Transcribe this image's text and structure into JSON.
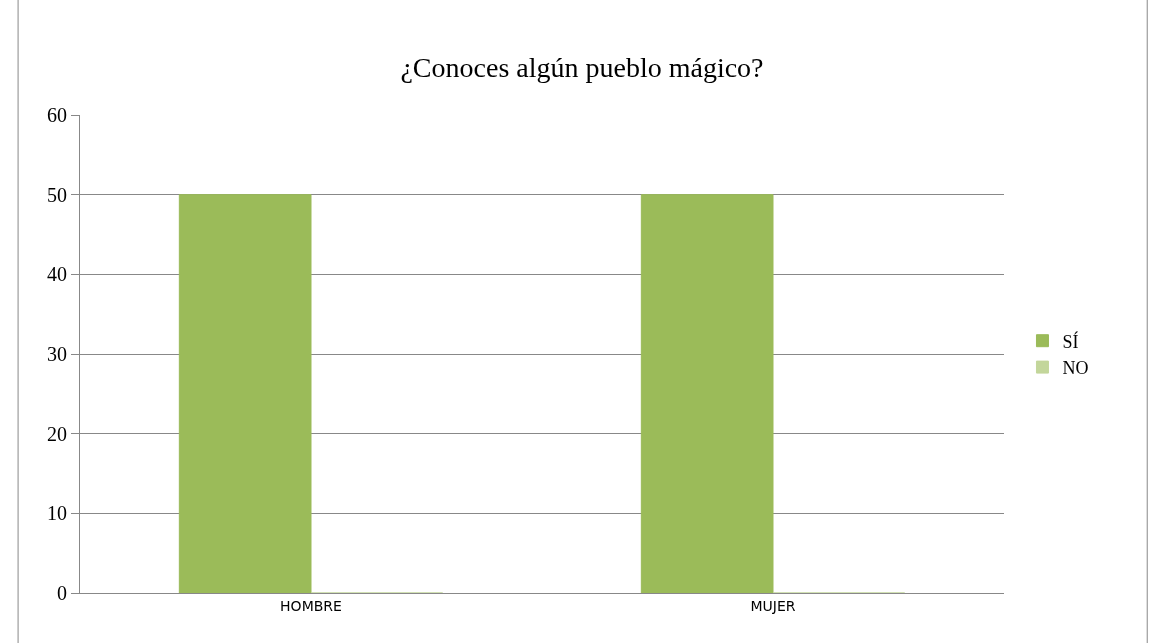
{
  "chart_data": {
    "type": "bar",
    "title": "¿Conoces algún pueblo mágico?",
    "categories": [
      "HOMBRE",
      "MUJER"
    ],
    "series": [
      {
        "name": "SÍ",
        "color": "#9bbb59",
        "values": [
          50,
          50
        ]
      },
      {
        "name": "NO",
        "color": "#c3d69b",
        "values": [
          0,
          0
        ]
      }
    ],
    "ylim": [
      0,
      60
    ],
    "yticks": [
      0,
      10,
      20,
      30,
      40,
      50,
      60
    ],
    "grid": "y",
    "legend": "right"
  }
}
